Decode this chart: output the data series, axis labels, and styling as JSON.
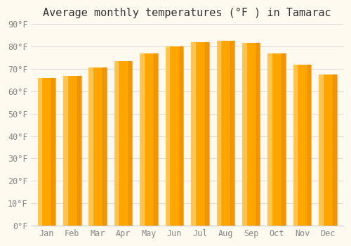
{
  "months": [
    "Jan",
    "Feb",
    "Mar",
    "Apr",
    "May",
    "Jun",
    "Jul",
    "Aug",
    "Sep",
    "Oct",
    "Nov",
    "Dec"
  ],
  "values": [
    66,
    67,
    70.5,
    73.5,
    77,
    80,
    82,
    82.5,
    81.5,
    77,
    72,
    67.5
  ],
  "bar_color_main": "#FFA500",
  "bar_color_light": "#FFD070",
  "bar_color_dark": "#E08000",
  "title": "Average monthly temperatures (°F ) in Tamarac",
  "ylim_min": 0,
  "ylim_max": 90,
  "ytick_step": 10,
  "background_color": "#FFFAF0",
  "grid_color": "#DDDDDD",
  "title_fontsize": 11,
  "tick_fontsize": 8.5
}
